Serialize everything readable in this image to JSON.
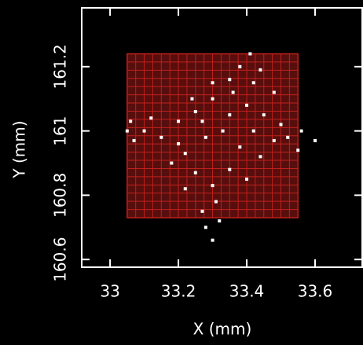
{
  "chart_data": {
    "type": "scatter",
    "x_label": "X (mm)",
    "y_label": "Y (mm)",
    "xlim": [
      32.917,
      33.738
    ],
    "ylim": [
      160.576,
      161.383
    ],
    "xticks": [
      33,
      33.2,
      33.4,
      33.6
    ],
    "yticks": [
      160.6,
      160.8,
      161,
      161.2
    ],
    "point_color": "#ffffff",
    "mesh": {
      "x": [
        33.05,
        33.55
      ],
      "y": [
        160.73,
        161.24
      ],
      "divisions": 20,
      "color": "#c0201c"
    },
    "x": [
      33.41,
      33.38,
      33.44,
      33.35,
      33.42,
      33.48,
      33.05,
      33.07,
      33.06,
      33.1,
      33.6,
      33.56,
      33.55,
      33.52,
      33.3,
      33.28,
      33.32,
      33.27,
      33.31,
      33.3,
      33.25,
      33.2,
      33.15,
      33.35,
      33.4,
      33.45,
      33.5,
      33.33,
      33.28,
      33.22,
      33.18,
      33.38,
      33.44,
      33.25,
      33.35,
      33.3,
      33.4,
      33.22,
      33.3,
      33.36,
      33.24,
      33.2,
      33.48,
      33.12,
      33.27,
      33.42
    ],
    "y": [
      161.24,
      161.2,
      161.19,
      161.16,
      161.15,
      161.12,
      161.0,
      160.97,
      161.03,
      161.0,
      160.97,
      161.0,
      160.94,
      160.98,
      160.66,
      160.7,
      160.72,
      160.75,
      160.78,
      161.1,
      161.06,
      161.03,
      160.98,
      161.05,
      161.08,
      161.05,
      161.02,
      161.0,
      160.98,
      160.93,
      160.9,
      160.95,
      160.92,
      160.87,
      160.88,
      160.83,
      160.85,
      160.82,
      161.15,
      161.12,
      161.1,
      160.96,
      160.97,
      161.04,
      161.03,
      161.0
    ]
  }
}
